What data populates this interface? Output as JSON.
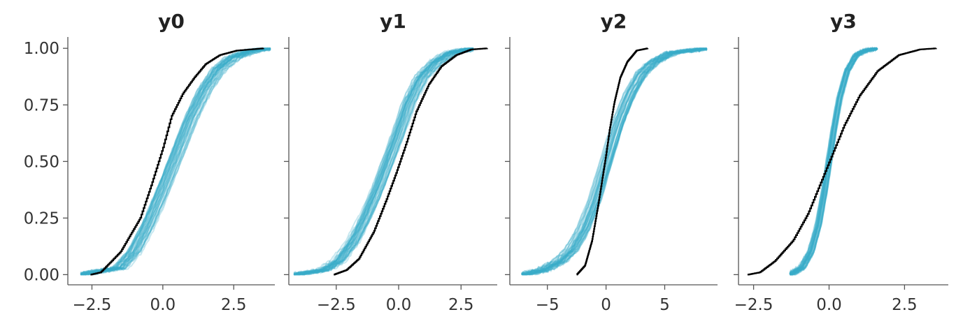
{
  "colors": {
    "posterior_predictive": "#3aaec8",
    "observed": "#000000"
  },
  "chart_data": [
    {
      "type": "line",
      "title": "y0",
      "xlim": [
        -3.35,
        3.95
      ],
      "ylim": [
        -0.045,
        1.05
      ],
      "xticks": [
        -2.5,
        0.0,
        2.5
      ],
      "xtick_labels": [
        "−2.5",
        "0.0",
        "2.5"
      ],
      "yticks": [
        0.0,
        0.25,
        0.5,
        0.75,
        1.0
      ],
      "ytick_labels": [
        "0.00",
        "0.25",
        "0.50",
        "0.75",
        "1.00"
      ],
      "show_ytick_labels": true,
      "series": [
        {
          "role": "posterior_predictive",
          "x": [
            -2.9,
            -1.5,
            -1.0,
            -0.5,
            0.0,
            0.5,
            1.0,
            1.5,
            2.0,
            2.5,
            3.2,
            3.8
          ],
          "y": [
            0.0,
            0.03,
            0.1,
            0.22,
            0.37,
            0.53,
            0.69,
            0.82,
            0.91,
            0.96,
            0.99,
            1.0
          ]
        },
        {
          "role": "observed",
          "x": [
            -2.55,
            -2.2,
            -1.5,
            -0.8,
            -0.4,
            0.0,
            0.3,
            0.7,
            1.1,
            1.5,
            2.0,
            2.6,
            3.55
          ],
          "y": [
            0.0,
            0.01,
            0.1,
            0.25,
            0.4,
            0.56,
            0.7,
            0.8,
            0.87,
            0.93,
            0.97,
            0.99,
            1.0
          ]
        }
      ]
    },
    {
      "type": "line",
      "title": "y1",
      "xlim": [
        -4.4,
        3.95
      ],
      "ylim": [
        -0.045,
        1.05
      ],
      "xticks": [
        -2.5,
        0.0,
        2.5
      ],
      "xtick_labels": [
        "−2.5",
        "0.0",
        "2.5"
      ],
      "yticks": [
        0.0,
        0.25,
        0.5,
        0.75,
        1.0
      ],
      "ytick_labels": [
        "0.00",
        "0.25",
        "0.50",
        "0.75",
        "1.00"
      ],
      "show_ytick_labels": false,
      "series": [
        {
          "role": "posterior_predictive",
          "x": [
            -4.2,
            -3.0,
            -2.4,
            -1.8,
            -1.3,
            -0.8,
            -0.4,
            0.0,
            0.4,
            0.9,
            1.5,
            2.1,
            3.0
          ],
          "y": [
            0.0,
            0.02,
            0.06,
            0.15,
            0.26,
            0.39,
            0.51,
            0.63,
            0.76,
            0.87,
            0.94,
            0.98,
            1.0
          ]
        },
        {
          "role": "observed",
          "x": [
            -2.6,
            -2.1,
            -1.6,
            -1.0,
            -0.5,
            -0.1,
            0.3,
            0.7,
            1.2,
            1.7,
            2.3,
            2.9,
            3.55
          ],
          "y": [
            0.0,
            0.02,
            0.07,
            0.19,
            0.33,
            0.45,
            0.58,
            0.72,
            0.84,
            0.92,
            0.97,
            0.995,
            1.0
          ]
        }
      ]
    },
    {
      "type": "line",
      "title": "y2",
      "xlim": [
        -8.2,
        9.5
      ],
      "ylim": [
        -0.045,
        1.05
      ],
      "xticks": [
        -5,
        0,
        5
      ],
      "xtick_labels": [
        "−5",
        "0",
        "5"
      ],
      "yticks": [
        0.0,
        0.25,
        0.5,
        0.75,
        1.0
      ],
      "ytick_labels": [
        "0.00",
        "0.25",
        "0.50",
        "0.75",
        "1.00"
      ],
      "show_ytick_labels": false,
      "series": [
        {
          "role": "posterior_predictive",
          "x": [
            -7.2,
            -5.5,
            -4.0,
            -3.0,
            -2.0,
            -1.0,
            0.0,
            1.0,
            2.0,
            3.0,
            4.0,
            5.5,
            8.6
          ],
          "y": [
            0.0,
            0.02,
            0.06,
            0.11,
            0.2,
            0.33,
            0.5,
            0.67,
            0.8,
            0.89,
            0.94,
            0.98,
            1.0
          ]
        },
        {
          "role": "observed",
          "x": [
            -2.5,
            -1.8,
            -1.2,
            -0.7,
            -0.3,
            0.0,
            0.3,
            0.7,
            1.2,
            1.8,
            2.6,
            3.55
          ],
          "y": [
            0.0,
            0.04,
            0.15,
            0.3,
            0.43,
            0.53,
            0.64,
            0.76,
            0.87,
            0.94,
            0.99,
            1.0
          ]
        }
      ]
    },
    {
      "type": "line",
      "title": "y3",
      "xlim": [
        -3.0,
        3.95
      ],
      "ylim": [
        -0.045,
        1.05
      ],
      "xticks": [
        -2.5,
        0.0,
        2.5
      ],
      "xtick_labels": [
        "−2.5",
        "0.0",
        "2.5"
      ],
      "yticks": [
        0.0,
        0.25,
        0.5,
        0.75,
        1.0
      ],
      "ytick_labels": [
        "0.00",
        "0.25",
        "0.50",
        "0.75",
        "1.00"
      ],
      "show_ytick_labels": false,
      "series": [
        {
          "role": "posterior_predictive",
          "x": [
            -1.3,
            -0.9,
            -0.6,
            -0.35,
            -0.15,
            0.0,
            0.15,
            0.35,
            0.6,
            0.9,
            1.2,
            1.6
          ],
          "y": [
            0.0,
            0.03,
            0.1,
            0.22,
            0.37,
            0.5,
            0.63,
            0.78,
            0.9,
            0.97,
            0.99,
            1.0
          ]
        },
        {
          "role": "observed",
          "x": [
            -2.7,
            -2.3,
            -1.8,
            -1.2,
            -0.7,
            -0.3,
            0.1,
            0.5,
            1.0,
            1.6,
            2.3,
            3.0,
            3.55
          ],
          "y": [
            0.0,
            0.01,
            0.06,
            0.15,
            0.27,
            0.4,
            0.53,
            0.66,
            0.79,
            0.9,
            0.97,
            0.995,
            1.0
          ]
        }
      ]
    }
  ]
}
